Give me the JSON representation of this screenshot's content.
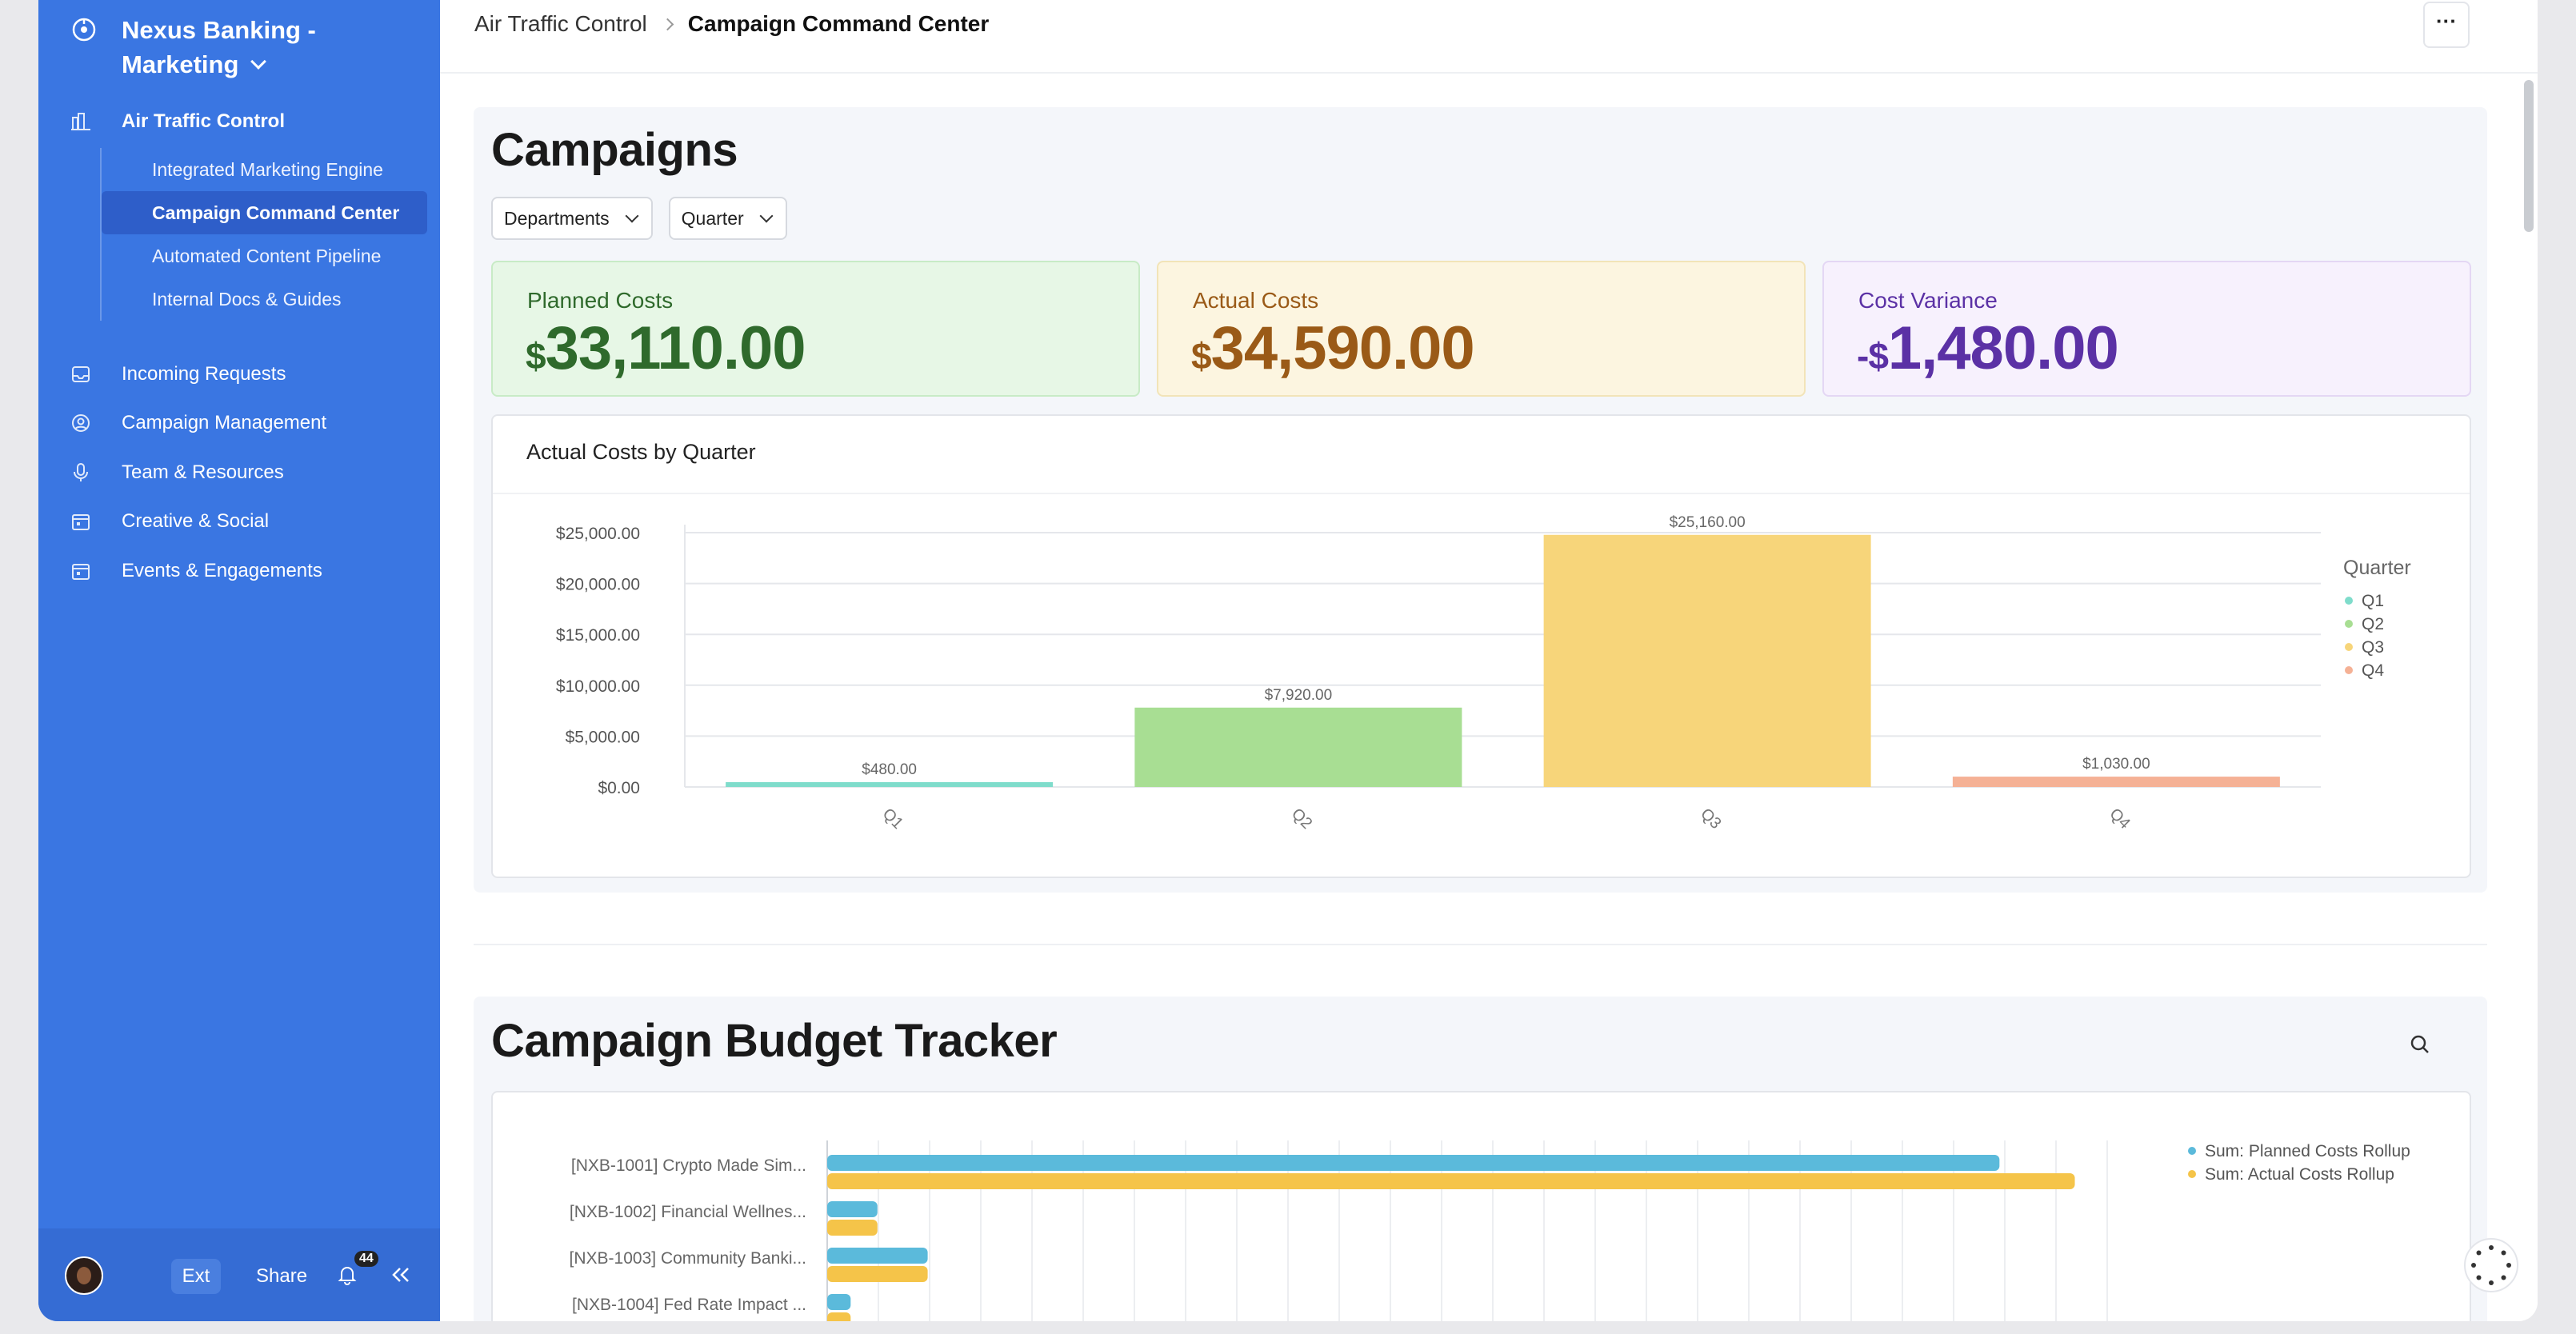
{
  "sidebar": {
    "workspace": "Nexus Banking - Marketing",
    "section": "Air Traffic Control",
    "sub_items": [
      {
        "label": "Integrated Marketing Engine",
        "active": false
      },
      {
        "label": "Campaign Command Center",
        "active": true
      },
      {
        "label": "Automated Content Pipeline",
        "active": false
      },
      {
        "label": "Internal Docs & Guides",
        "active": false
      }
    ],
    "items": [
      {
        "label": "Incoming Requests",
        "icon": "inbox-icon"
      },
      {
        "label": "Campaign Management",
        "icon": "user-circle-icon"
      },
      {
        "label": "Team & Resources",
        "icon": "microphone-icon"
      },
      {
        "label": "Creative & Social",
        "icon": "calendar-icon"
      },
      {
        "label": "Events & Engagements",
        "icon": "calendar-icon"
      }
    ],
    "footer": {
      "ext": "Ext",
      "share": "Share",
      "notifications": "44"
    }
  },
  "breadcrumb": {
    "parent": "Air Traffic Control",
    "current": "Campaign Command Center"
  },
  "more_label": "···",
  "campaigns": {
    "title": "Campaigns",
    "filters": [
      "Departments",
      "Quarter"
    ],
    "kpis": [
      {
        "label": "Planned Costs",
        "currency": "$",
        "value": "33,110.00"
      },
      {
        "label": "Actual Costs",
        "currency": "$",
        "value": "34,590.00"
      },
      {
        "label": "Cost Variance",
        "currency": "-$",
        "value": "1,480.00"
      }
    ]
  },
  "budget_tracker": {
    "title": "Campaign Budget Tracker"
  },
  "chart_data": [
    {
      "type": "bar",
      "title": "Actual Costs by Quarter",
      "categories": [
        "Q1",
        "Q2",
        "Q3",
        "Q4"
      ],
      "values": [
        480,
        7920,
        25160,
        1030
      ],
      "value_labels": [
        "$480.00",
        "$7,920.00",
        "$25,160.00",
        "$1,030.00"
      ],
      "colors": [
        "#7fdccb",
        "#a8de93",
        "#f7d57a",
        "#f5b195"
      ],
      "ylim": [
        0,
        25000
      ],
      "yticks": [
        "$0.00",
        "$5,000.00",
        "$10,000.00",
        "$15,000.00",
        "$20,000.00",
        "$25,000.00"
      ],
      "legend_title": "Quarter",
      "legend": [
        "Q1",
        "Q2",
        "Q3",
        "Q4"
      ],
      "legend_position": "right",
      "grid": true
    },
    {
      "type": "bar",
      "orientation": "horizontal",
      "categories": [
        "[NXB-1001] Crypto Made Sim...",
        "[NXB-1002] Financial Wellnes...",
        "[NXB-1003] Community Banki...",
        "[NXB-1004] Fed Rate Impact ..."
      ],
      "series": [
        {
          "name": "Sum: Planned Costs Rollup",
          "color": "#5bbadb",
          "values": [
            14000,
            600,
            1200,
            280
          ]
        },
        {
          "name": "Sum: Actual Costs Rollup",
          "color": "#f5c449",
          "values": [
            14900,
            600,
            1200,
            280
          ]
        }
      ],
      "xlim": [
        0,
        15000
      ],
      "legend_position": "top-right",
      "grid": true
    }
  ]
}
